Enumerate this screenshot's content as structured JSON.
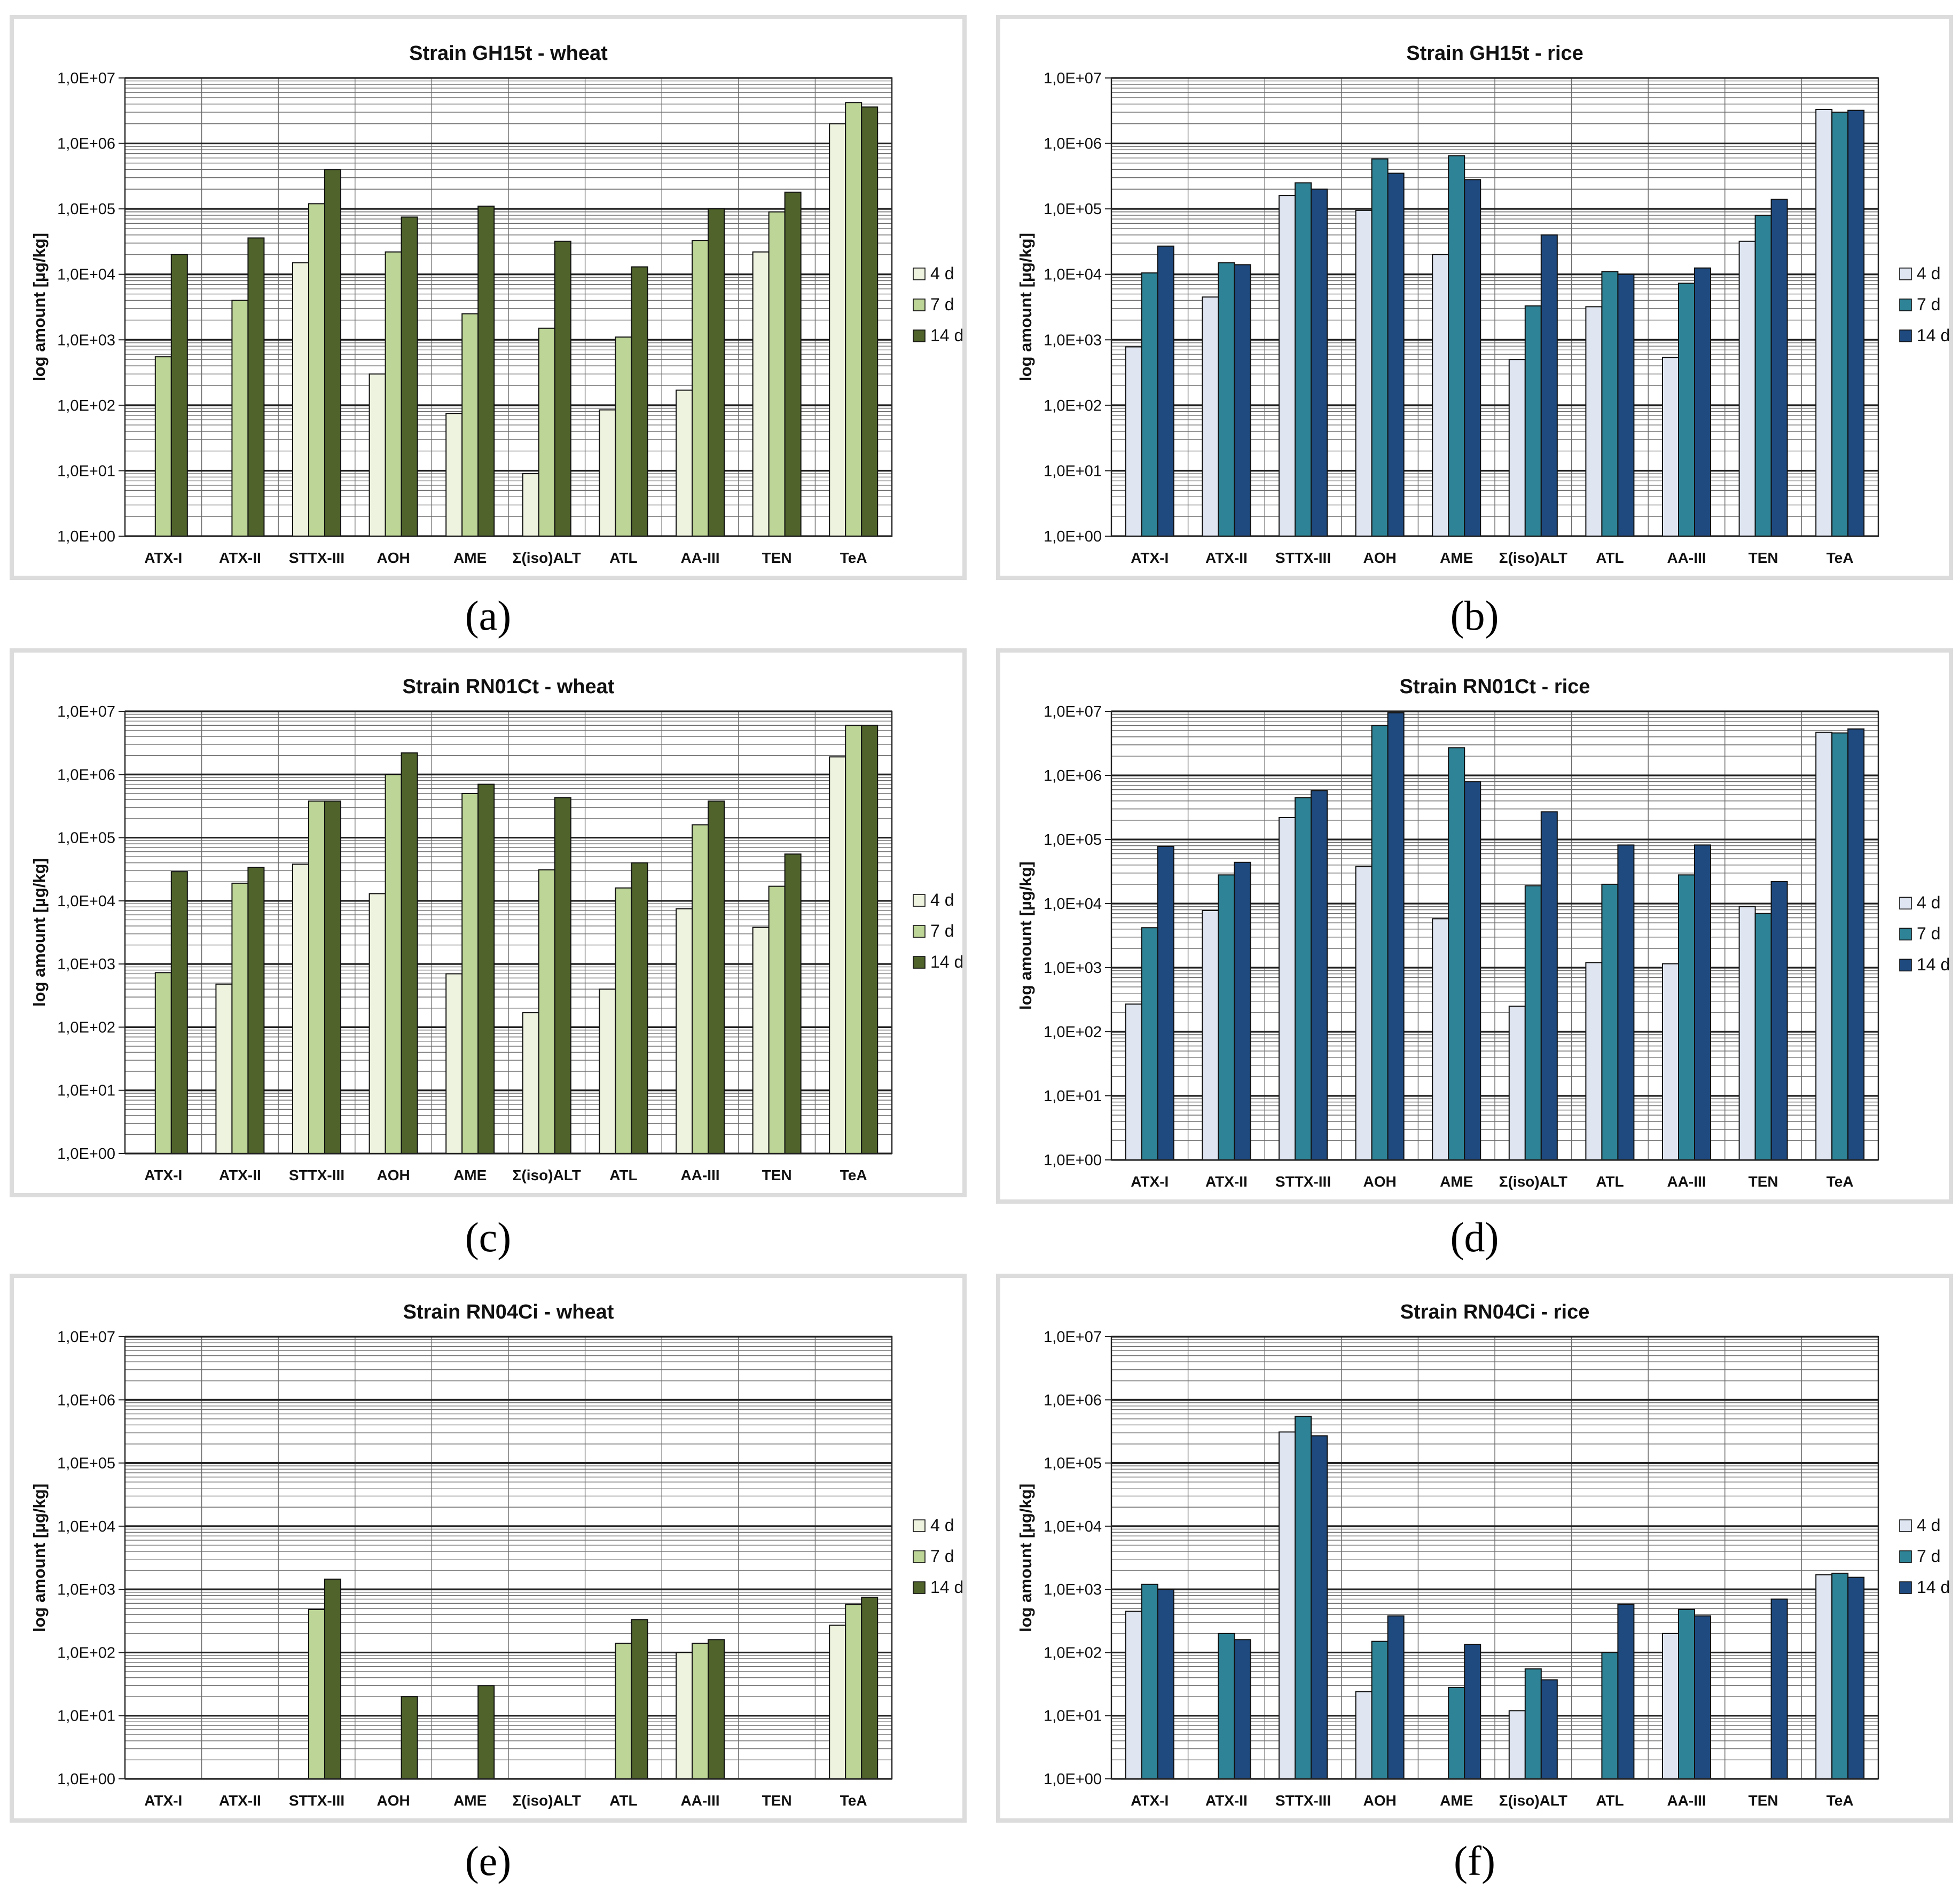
{
  "charts": [
    {
      "id": "a",
      "caption": "(a)",
      "theme": "green",
      "colors": [
        "#eef3df",
        "#bdd596",
        "#4f632b"
      ],
      "chart_data": {
        "type": "bar",
        "title": "Strain GH15t  -  wheat",
        "ylabel": "log amount [µg/kg]",
        "yscale": "log",
        "ylim": [
          1,
          10000000
        ],
        "yticks": [
          "1,0E+00",
          "1,0E+01",
          "1,0E+02",
          "1,0E+03",
          "1,0E+04",
          "1,0E+05",
          "1,0E+06",
          "1,0E+07"
        ],
        "categories": [
          "ATX-I",
          "ATX-II",
          "STTX-III",
          "AOH",
          "AME",
          "Σ(iso)ALT",
          "ATL",
          "AA-III",
          "TEN",
          "TeA"
        ],
        "series": [
          {
            "name": "4 d",
            "values": [
              null,
              null,
              15000,
              300,
              75,
              9,
              85,
              170,
              22000,
              2000000
            ]
          },
          {
            "name": "7 d",
            "values": [
              550,
              4000,
              120000,
              22000,
              2500,
              1500,
              1100,
              33000,
              90000,
              4200000
            ]
          },
          {
            "name": "14 d",
            "values": [
              20000,
              36000,
              400000,
              75000,
              110000,
              32000,
              13000,
              100000,
              180000,
              3600000
            ]
          }
        ]
      }
    },
    {
      "id": "b",
      "caption": "(b)",
      "theme": "blue",
      "colors": [
        "#dfe6f2",
        "#2e8496",
        "#1f4a80"
      ],
      "chart_data": {
        "type": "bar",
        "title": "Strain GH15t  -  rice",
        "ylabel": "log amount [µg/kg]",
        "yscale": "log",
        "ylim": [
          1,
          10000000
        ],
        "yticks": [
          "1,0E+00",
          "1,0E+01",
          "1,0E+02",
          "1,0E+03",
          "1,0E+04",
          "1,0E+05",
          "1,0E+06",
          "1,0E+07"
        ],
        "categories": [
          "ATX-I",
          "ATX-II",
          "STTX-III",
          "AOH",
          "AME",
          "Σ(iso)ALT",
          "ATL",
          "AA-III",
          "TEN",
          "TeA"
        ],
        "series": [
          {
            "name": "4 d",
            "values": [
              780,
              4500,
              160000,
              95000,
              20000,
              500,
              3200,
              540,
              32000,
              3300000
            ]
          },
          {
            "name": "7 d",
            "values": [
              10500,
              15000,
              250000,
              580000,
              650000,
              3300,
              11000,
              7300,
              80000,
              3000000
            ]
          },
          {
            "name": "14 d",
            "values": [
              27000,
              14000,
              200000,
              350000,
              280000,
              40000,
              10000,
              12500,
              140000,
              3200000
            ]
          }
        ]
      }
    },
    {
      "id": "c",
      "caption": "(c)",
      "theme": "green",
      "colors": [
        "#eef3df",
        "#bdd596",
        "#4f632b"
      ],
      "chart_data": {
        "type": "bar",
        "title": "Strain RN01Ct  -  wheat",
        "ylabel": "log amount [µg/kg]",
        "yscale": "log",
        "ylim": [
          1,
          10000000
        ],
        "yticks": [
          "1,0E+00",
          "1,0E+01",
          "1,0E+02",
          "1,0E+03",
          "1,0E+04",
          "1,0E+05",
          "1,0E+06",
          "1,0E+07"
        ],
        "categories": [
          "ATX-I",
          "ATX-II",
          "STTX-III",
          "AOH",
          "AME",
          "Σ(iso)ALT",
          "ATL",
          "AA-III",
          "TEN",
          "TeA"
        ],
        "series": [
          {
            "name": "4 d",
            "values": [
              null,
              480,
              38000,
              13000,
              700,
              170,
              400,
              7500,
              3800,
              1900000
            ]
          },
          {
            "name": "7 d",
            "values": [
              730,
              19000,
              380000,
              1000000,
              500000,
              31000,
              16000,
              160000,
              17000,
              6000000
            ]
          },
          {
            "name": "14 d",
            "values": [
              29000,
              34000,
              380000,
              2200000,
              700000,
              430000,
              40000,
              380000,
              55000,
              6000000
            ]
          }
        ]
      }
    },
    {
      "id": "d",
      "caption": "(d)",
      "theme": "blue",
      "colors": [
        "#dfe6f2",
        "#2e8496",
        "#1f4a80"
      ],
      "chart_data": {
        "type": "bar",
        "title": "Strain RN01Ct  -  rice",
        "ylabel": "log amount [µg/kg]",
        "yscale": "log",
        "ylim": [
          1,
          10000000
        ],
        "yticks": [
          "1,0E+00",
          "1,0E+01",
          "1,0E+02",
          "1,0E+03",
          "1,0E+04",
          "1,0E+05",
          "1,0E+06",
          "1,0E+07"
        ],
        "categories": [
          "ATX-I",
          "ATX-II",
          "STTX-III",
          "AOH",
          "AME",
          "Σ(iso)ALT",
          "ATL",
          "AA-III",
          "TEN",
          "TeA"
        ],
        "series": [
          {
            "name": "4 d",
            "values": [
              270,
              7800,
              220000,
              38000,
              5800,
              250,
              1200,
              1150,
              9000,
              4700000
            ]
          },
          {
            "name": "7 d",
            "values": [
              4200,
              28000,
              450000,
              6000000,
              2700000,
              19000,
              20000,
              28000,
              7000,
              4600000
            ]
          },
          {
            "name": "14 d",
            "values": [
              78000,
              44000,
              580000,
              9500000,
              800000,
              270000,
              82000,
              82000,
              22000,
              5300000
            ]
          }
        ]
      }
    },
    {
      "id": "e",
      "caption": "(e)",
      "theme": "green",
      "colors": [
        "#eef3df",
        "#bdd596",
        "#4f632b"
      ],
      "chart_data": {
        "type": "bar",
        "title": "Strain RN04Ci  -  wheat",
        "ylabel": "log amount [µg/kg]",
        "yscale": "log",
        "ylim": [
          1,
          10000000
        ],
        "yticks": [
          "1,0E+00",
          "1,0E+01",
          "1,0E+02",
          "1,0E+03",
          "1,0E+04",
          "1,0E+05",
          "1,0E+06",
          "1,0E+07"
        ],
        "categories": [
          "ATX-I",
          "ATX-II",
          "STTX-III",
          "AOH",
          "AME",
          "Σ(iso)ALT",
          "ATL",
          "AA-III",
          "TEN",
          "TeA"
        ],
        "series": [
          {
            "name": "4 d",
            "values": [
              null,
              null,
              null,
              null,
              null,
              null,
              null,
              100,
              null,
              270
            ]
          },
          {
            "name": "7 d",
            "values": [
              null,
              null,
              480,
              null,
              null,
              null,
              140,
              140,
              null,
              580
            ]
          },
          {
            "name": "14 d",
            "values": [
              null,
              null,
              1450,
              20,
              30,
              null,
              330,
              160,
              null,
              750
            ]
          }
        ]
      }
    },
    {
      "id": "f",
      "caption": "(f)",
      "theme": "blue",
      "colors": [
        "#dfe6f2",
        "#2e8496",
        "#1f4a80"
      ],
      "chart_data": {
        "type": "bar",
        "title": "Strain RN04Ci  -  rice",
        "ylabel": "log amount [µg/kg]",
        "yscale": "log",
        "ylim": [
          1,
          10000000
        ],
        "yticks": [
          "1,0E+00",
          "1,0E+01",
          "1,0E+02",
          "1,0E+03",
          "1,0E+04",
          "1,0E+05",
          "1,0E+06",
          "1,0E+07"
        ],
        "categories": [
          "ATX-I",
          "ATX-II",
          "STTX-III",
          "AOH",
          "AME",
          "Σ(iso)ALT",
          "ATL",
          "AA-III",
          "TEN",
          "TeA"
        ],
        "series": [
          {
            "name": "4 d",
            "values": [
              450,
              null,
              310000,
              24,
              null,
              12,
              null,
              200,
              null,
              1700
            ]
          },
          {
            "name": "7 d",
            "values": [
              1200,
              200,
              550000,
              150,
              28,
              55,
              100,
              480,
              null,
              1800
            ]
          },
          {
            "name": "14 d",
            "values": [
              1000,
              160,
              270000,
              380,
              135,
              37,
              580,
              380,
              700,
              1550
            ]
          }
        ]
      }
    }
  ]
}
